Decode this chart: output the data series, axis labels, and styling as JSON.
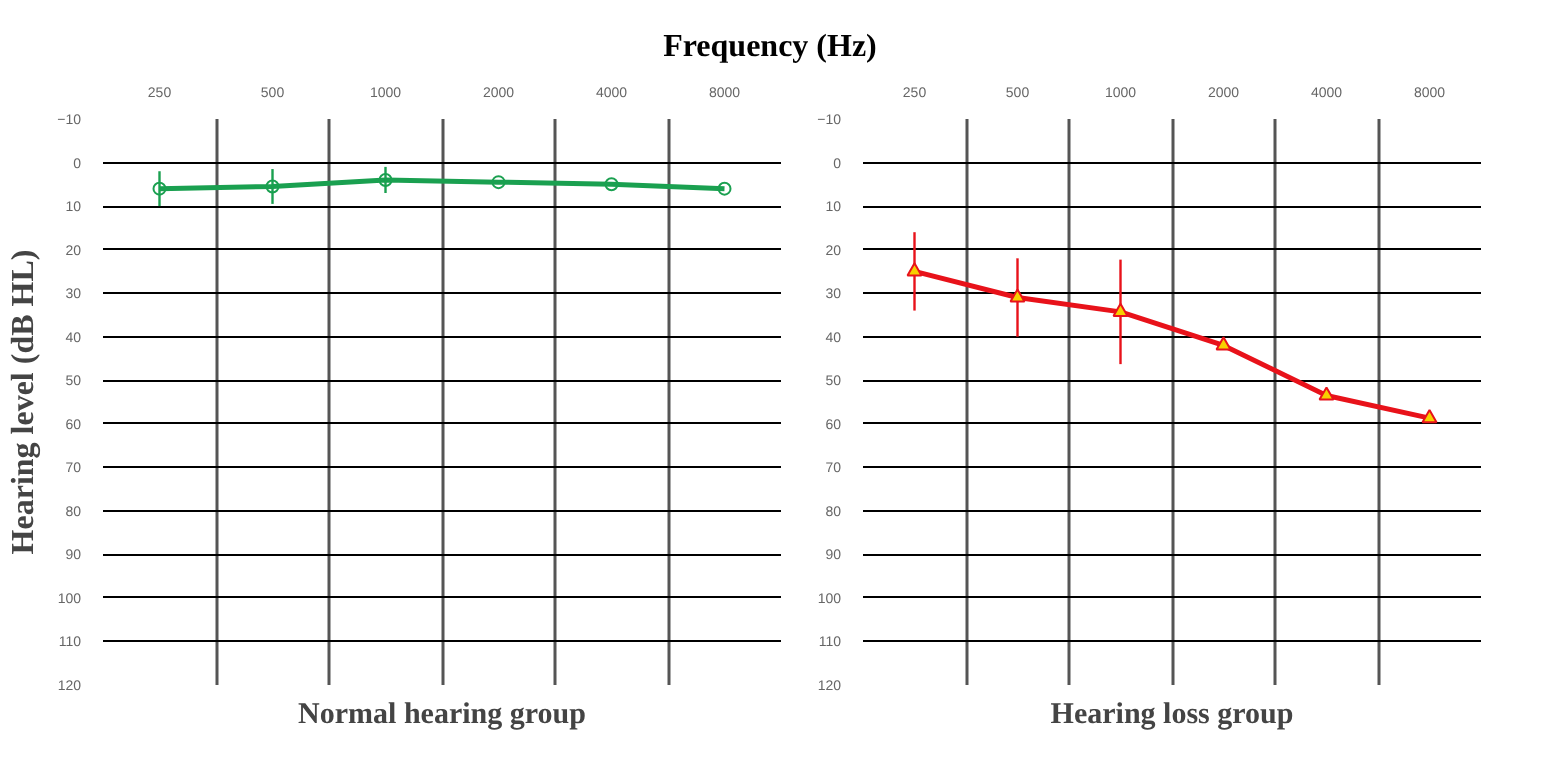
{
  "chart_data": [
    {
      "type": "line",
      "title": "Normal hearing group",
      "xlabel": "Frequency (Hz)",
      "ylabel": "Hearing level (dB HL)",
      "categories": [
        "250",
        "500",
        "1000",
        "2000",
        "4000",
        "8000"
      ],
      "series": [
        {
          "color": "#1aa050",
          "values": [
            6,
            5.5,
            4,
            4.5,
            5,
            6
          ],
          "errors": [
            4,
            4,
            3,
            null,
            null,
            null
          ],
          "marker": "circle"
        }
      ],
      "ylim": [
        120,
        -10
      ],
      "yticks": [
        -10,
        0,
        10,
        20,
        30,
        40,
        50,
        60,
        70,
        80,
        90,
        100,
        110,
        120
      ],
      "grid": true
    },
    {
      "type": "line",
      "title": "Hearing loss group",
      "categories": [
        "250",
        "500",
        "1000",
        "2000",
        "4000",
        "8000"
      ],
      "series": [
        {
          "color": "#e8121a",
          "values": [
            25,
            31,
            34.3,
            42,
            53.5,
            58.7
          ],
          "errors": [
            9,
            9,
            12,
            null,
            null,
            null
          ],
          "marker": "triangle"
        }
      ],
      "ylim": [
        120,
        -10
      ],
      "yticks": [
        -10,
        0,
        10,
        20,
        30,
        40,
        50,
        60,
        70,
        80,
        90,
        100,
        110,
        120
      ],
      "grid": true
    }
  ]
}
